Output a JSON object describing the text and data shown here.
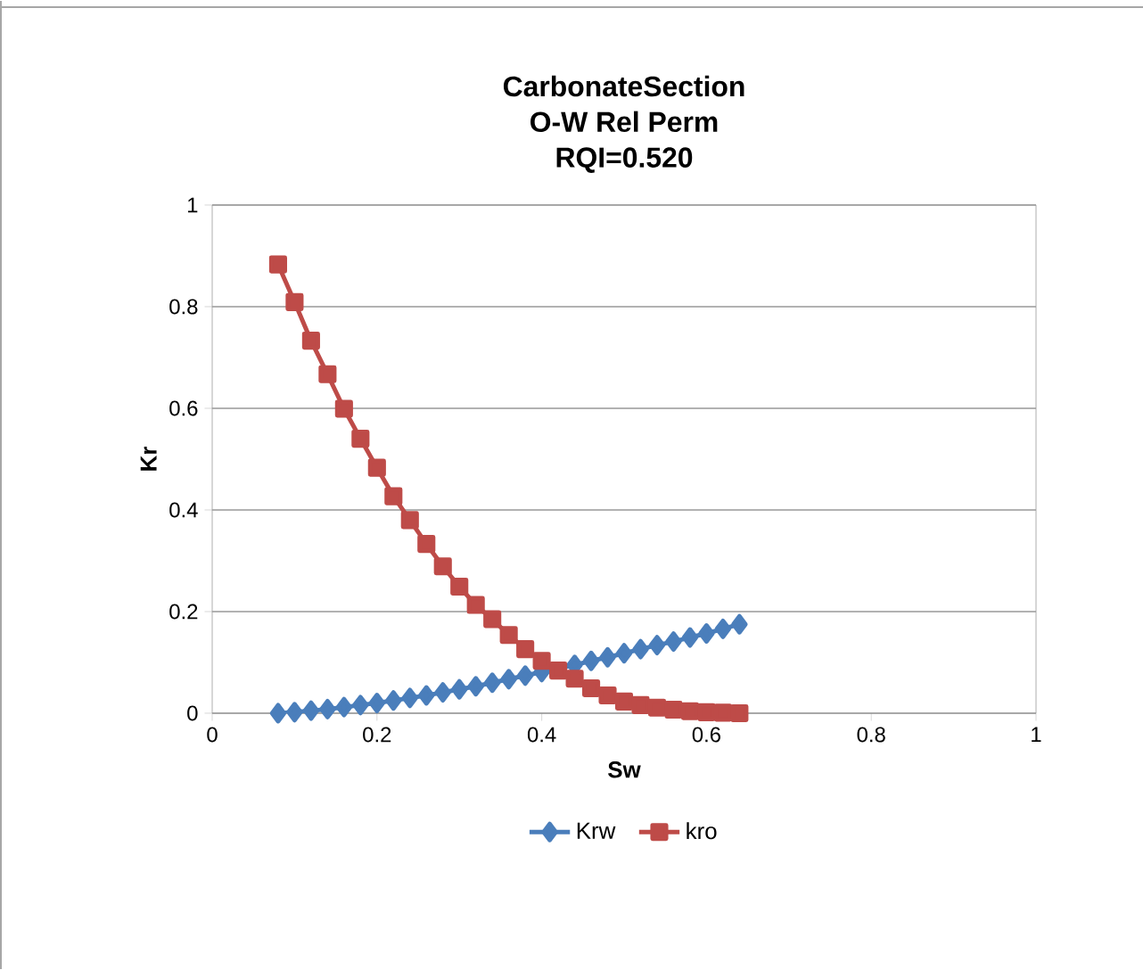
{
  "chart_data": {
    "type": "line",
    "title": "CarbonateSection\nO-W Rel Perm\nRQI=0.520",
    "xlabel": "Sw",
    "ylabel": "Kr",
    "x": [
      0.08,
      0.1,
      0.12,
      0.14,
      0.16,
      0.18,
      0.2,
      0.22,
      0.24,
      0.26,
      0.28,
      0.3,
      0.32,
      0.34,
      0.36,
      0.38,
      0.4,
      0.42,
      0.44,
      0.46,
      0.48,
      0.5,
      0.52,
      0.54,
      0.56,
      0.58,
      0.6,
      0.62,
      0.64
    ],
    "series": [
      {
        "name": "Krw",
        "color": "#4a7ebb",
        "marker": "diamond",
        "values": [
          0,
          0.002,
          0.005,
          0.008,
          0.012,
          0.016,
          0.02,
          0.025,
          0.03,
          0.035,
          0.041,
          0.047,
          0.053,
          0.06,
          0.067,
          0.074,
          0.081,
          null,
          0.095,
          0.103,
          0.11,
          0.118,
          0.126,
          0.134,
          0.141,
          0.149,
          0.157,
          0.166,
          0.175
        ]
      },
      {
        "name": "kro",
        "color": "#be4b48",
        "marker": "square",
        "values": [
          0.883,
          0.809,
          0.733,
          0.667,
          0.599,
          0.54,
          0.483,
          0.427,
          0.38,
          0.333,
          0.289,
          0.249,
          0.213,
          0.185,
          0.154,
          0.126,
          0.103,
          0.084,
          0.068,
          0.049,
          0.035,
          0.023,
          0.016,
          0.011,
          0.007,
          0.004,
          0.002,
          0.001,
          0
        ]
      }
    ],
    "xlim": [
      0,
      1
    ],
    "ylim": [
      0,
      1
    ],
    "xticks": [
      0,
      0.2,
      0.4,
      0.6,
      0.8,
      1
    ],
    "yticks": [
      0,
      0.2,
      0.4,
      0.6,
      0.8,
      1
    ],
    "grid": "y",
    "legend": "bottom",
    "line_style": "solid"
  }
}
